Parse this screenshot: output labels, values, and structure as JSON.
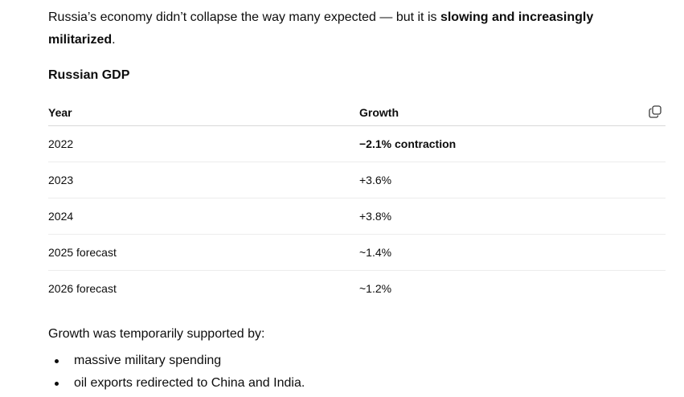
{
  "intro": {
    "text_before": "Russia’s economy didn’t collapse the way many expected — but it is ",
    "bold": "slowing and increasingly militarized",
    "text_after": "."
  },
  "section": {
    "heading": "Russian GDP"
  },
  "table": {
    "headers": [
      "Year",
      "Growth"
    ],
    "copy_icon": "copy-icon",
    "rows": [
      {
        "year": "2022",
        "growth": "−2.1% contraction"
      },
      {
        "year": "2023",
        "growth": "+3.6%"
      },
      {
        "year": "2024",
        "growth": "+3.8%"
      },
      {
        "year": "2025 forecast",
        "growth": "~1.4%"
      },
      {
        "year": "2026 forecast",
        "growth": "~1.2%"
      }
    ]
  },
  "followup": {
    "text": "Growth was temporarily supported by:",
    "bullets": [
      "massive military spending",
      "oil exports redirected to China and India."
    ]
  }
}
